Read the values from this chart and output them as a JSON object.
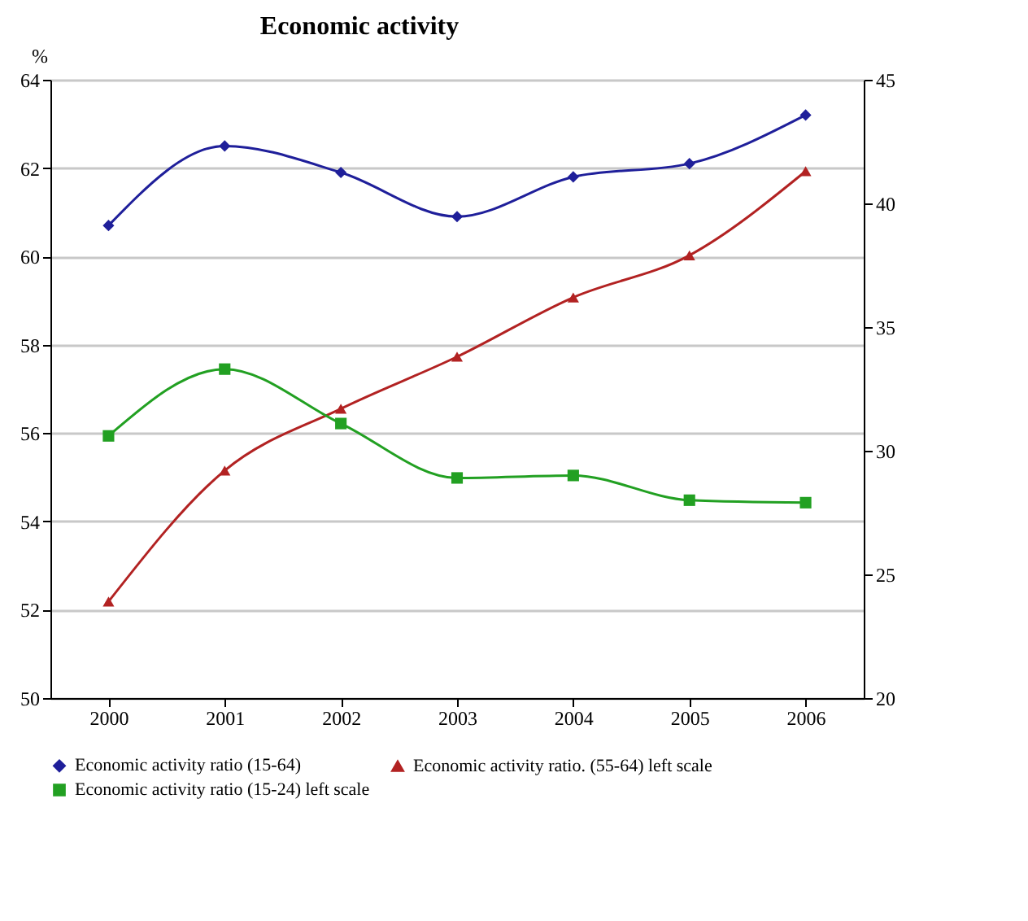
{
  "chart_data": {
    "type": "line",
    "title": "Economic activity",
    "ylabel": "%",
    "categories": [
      "2000",
      "2001",
      "2002",
      "2003",
      "2004",
      "2005",
      "2006"
    ],
    "series": [
      {
        "name": "Economic activity ratio (15-64)",
        "color": "#1f1f9a",
        "marker": "diamond",
        "values": [
          60.7,
          62.5,
          61.9,
          60.9,
          61.8,
          62.1,
          63.2
        ]
      },
      {
        "name": "Economic activity ratio. (55-64) left scale",
        "color": "#b22222",
        "marker": "triangle",
        "axis": "y2",
        "values": [
          23.9,
          29.2,
          31.7,
          33.8,
          36.2,
          37.9,
          41.3
        ]
      },
      {
        "name": "Economic activity ratio (15-24) left scale",
        "color": "#22a022",
        "marker": "square",
        "axis": "y2",
        "values": [
          30.6,
          33.3,
          31.1,
          28.9,
          29.0,
          28.0,
          27.9
        ]
      }
    ],
    "ylim": [
      50,
      64
    ],
    "yticks": [
      50,
      52,
      54,
      56,
      58,
      60,
      62,
      64
    ],
    "y2lim": [
      20,
      45
    ],
    "y2ticks": [
      20,
      25,
      30,
      35,
      40,
      45
    ],
    "grid": "y",
    "legend": "bottom"
  }
}
